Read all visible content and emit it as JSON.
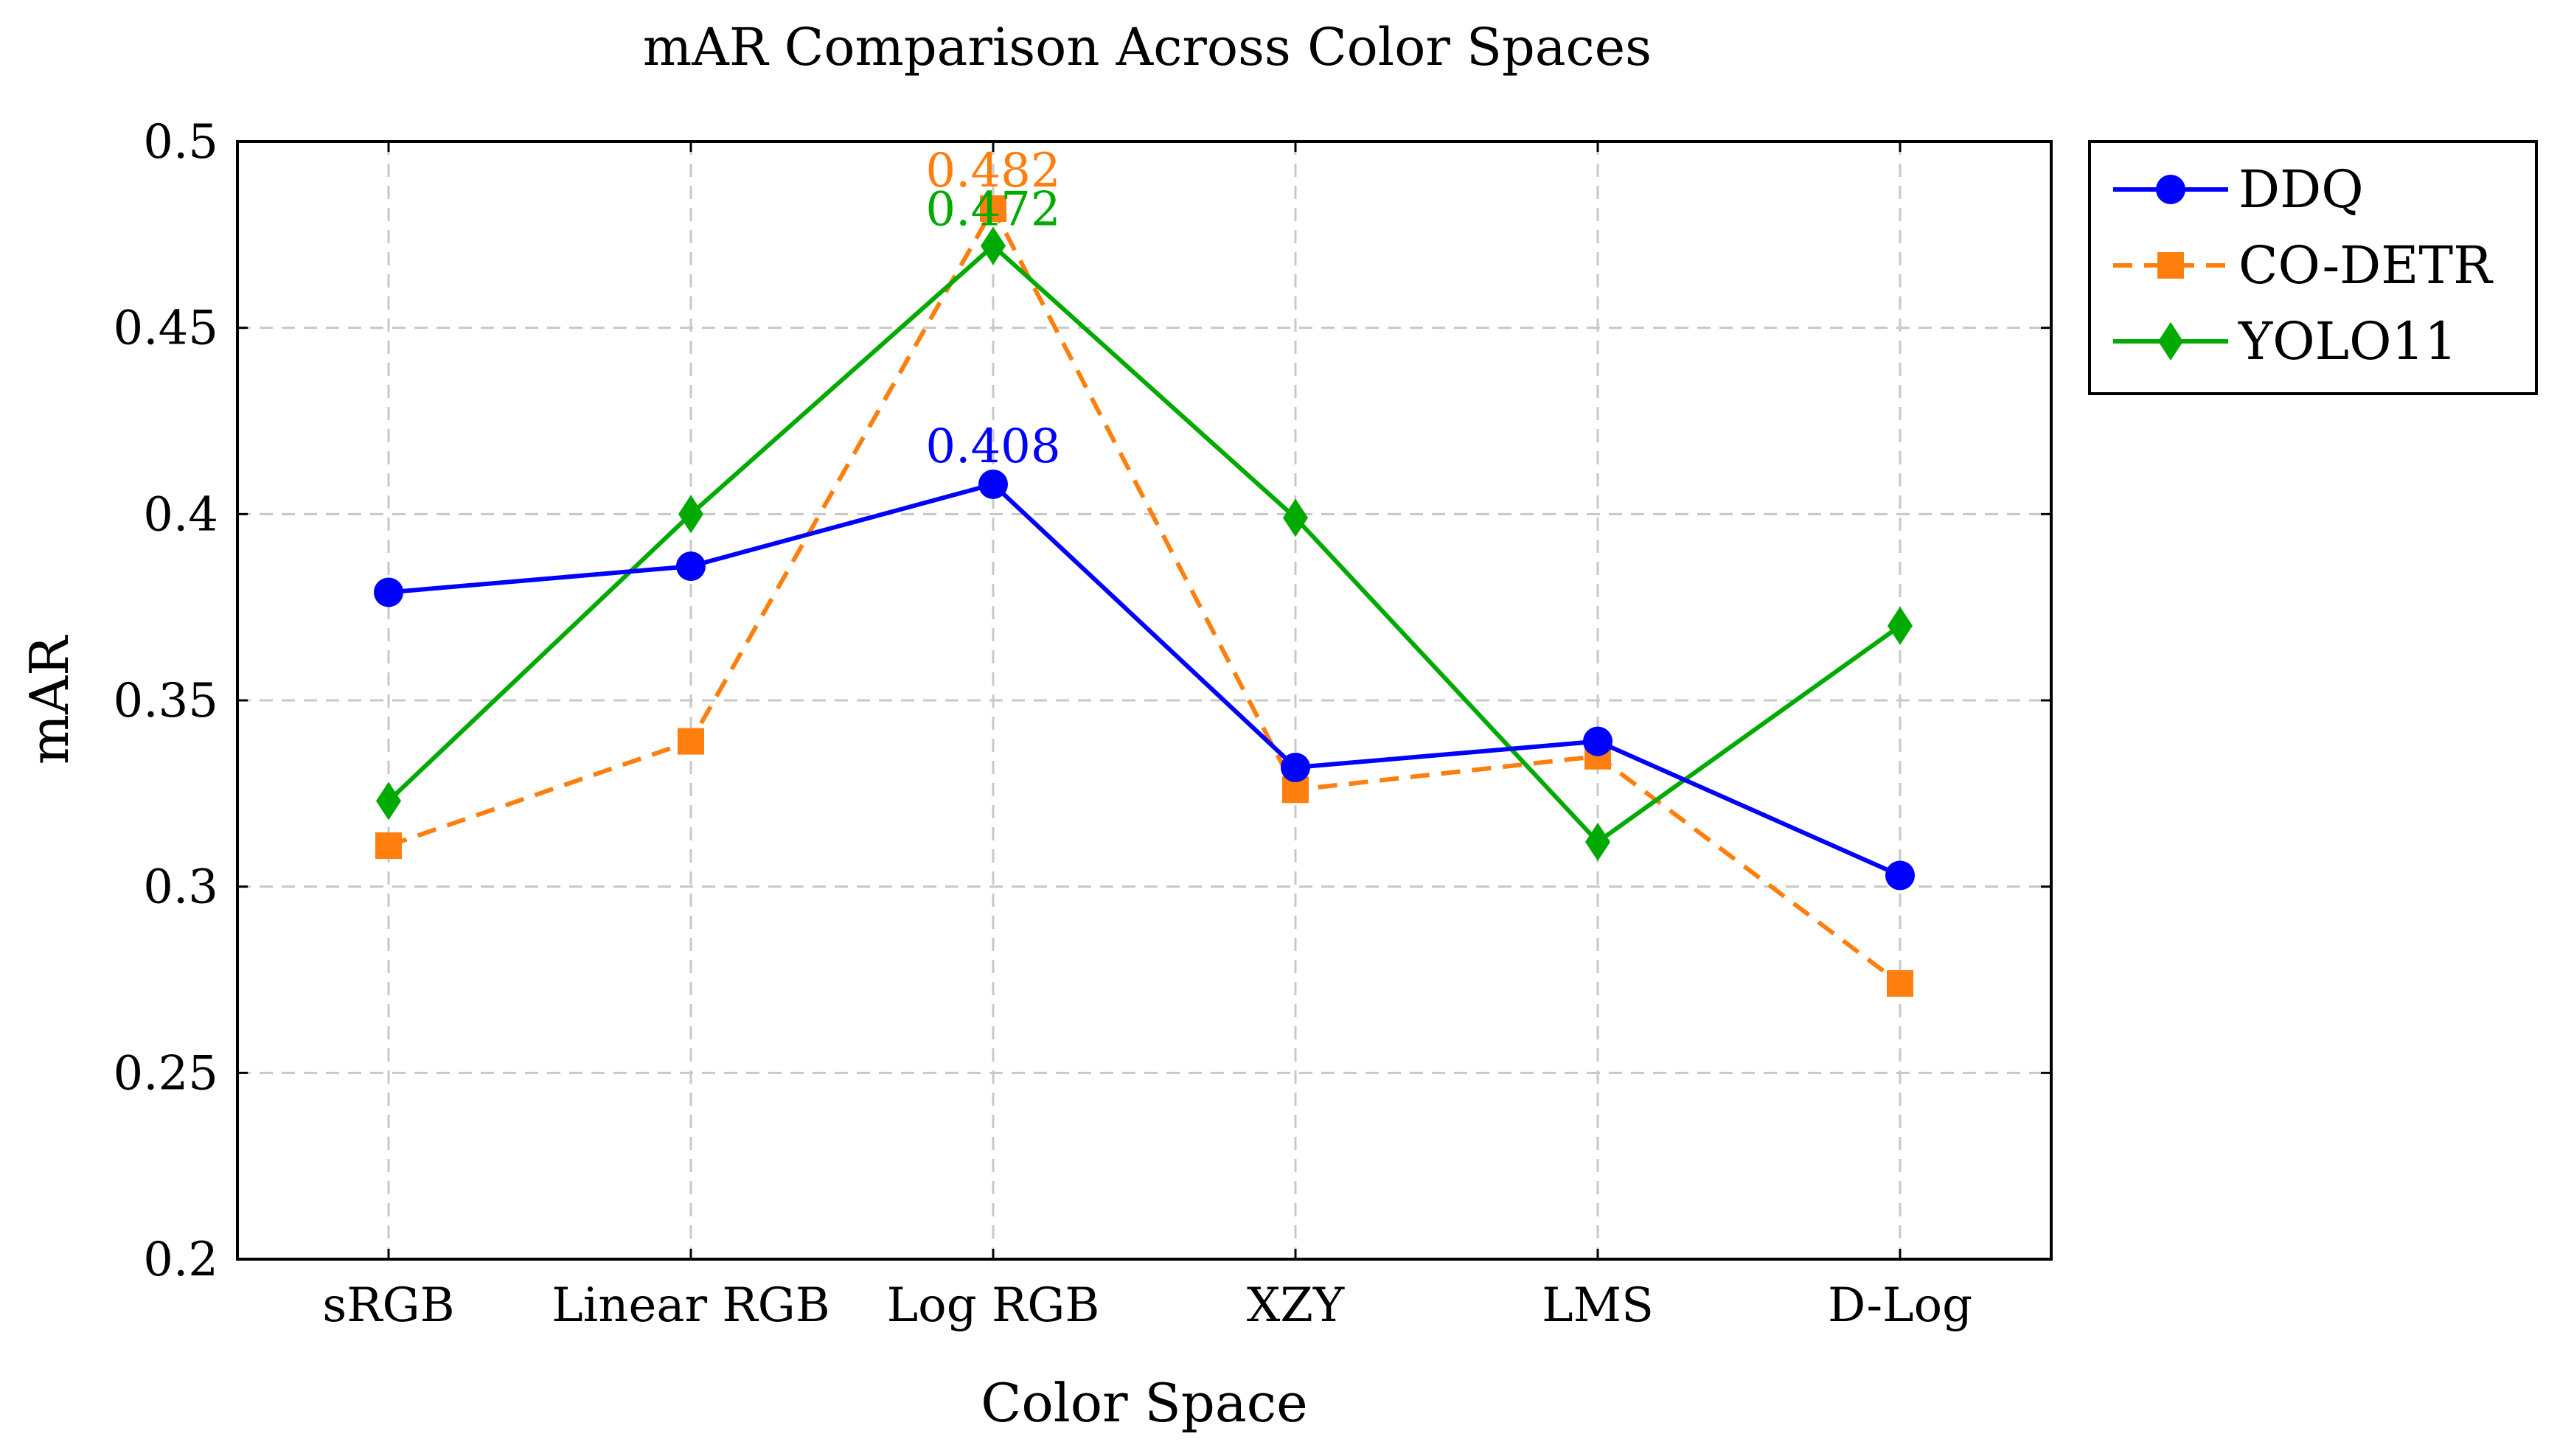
{
  "chart_data": {
    "type": "line",
    "title": "mAR Comparison Across Color Spaces",
    "xlabel": "Color Space",
    "ylabel": "mAR",
    "categories": [
      "sRGB",
      "Linear RGB",
      "Log RGB",
      "XZY",
      "LMS",
      "D-Log"
    ],
    "ylim": [
      0.2,
      0.5
    ],
    "yticks": [
      0.2,
      0.25,
      0.3,
      0.35,
      0.4,
      0.45,
      0.5
    ],
    "ytick_labels": [
      "0.2",
      "0.25",
      "0.3",
      "0.35",
      "0.4",
      "0.45",
      "0.5"
    ],
    "grid": true,
    "legend_position": "outside-top-right",
    "series": [
      {
        "name": "DDQ",
        "color": "#0000ff",
        "marker": "circle",
        "dash": "solid",
        "values": [
          0.379,
          0.386,
          0.408,
          0.332,
          0.339,
          0.303
        ]
      },
      {
        "name": "CO-DETR",
        "color": "#ff7f0e",
        "marker": "square",
        "dash": "dashed",
        "values": [
          0.311,
          0.339,
          0.482,
          0.326,
          0.335,
          0.274
        ]
      },
      {
        "name": "YOLO11",
        "color": "#00aa00",
        "marker": "diamond",
        "dash": "solid",
        "values": [
          0.323,
          0.4,
          0.472,
          0.399,
          0.312,
          0.37
        ]
      }
    ],
    "annotations": [
      {
        "series": "DDQ",
        "category": "Log RGB",
        "text": "0.408"
      },
      {
        "series": "CO-DETR",
        "category": "Log RGB",
        "text": "0.482"
      },
      {
        "series": "YOLO11",
        "category": "Log RGB",
        "text": "0.472"
      }
    ]
  }
}
